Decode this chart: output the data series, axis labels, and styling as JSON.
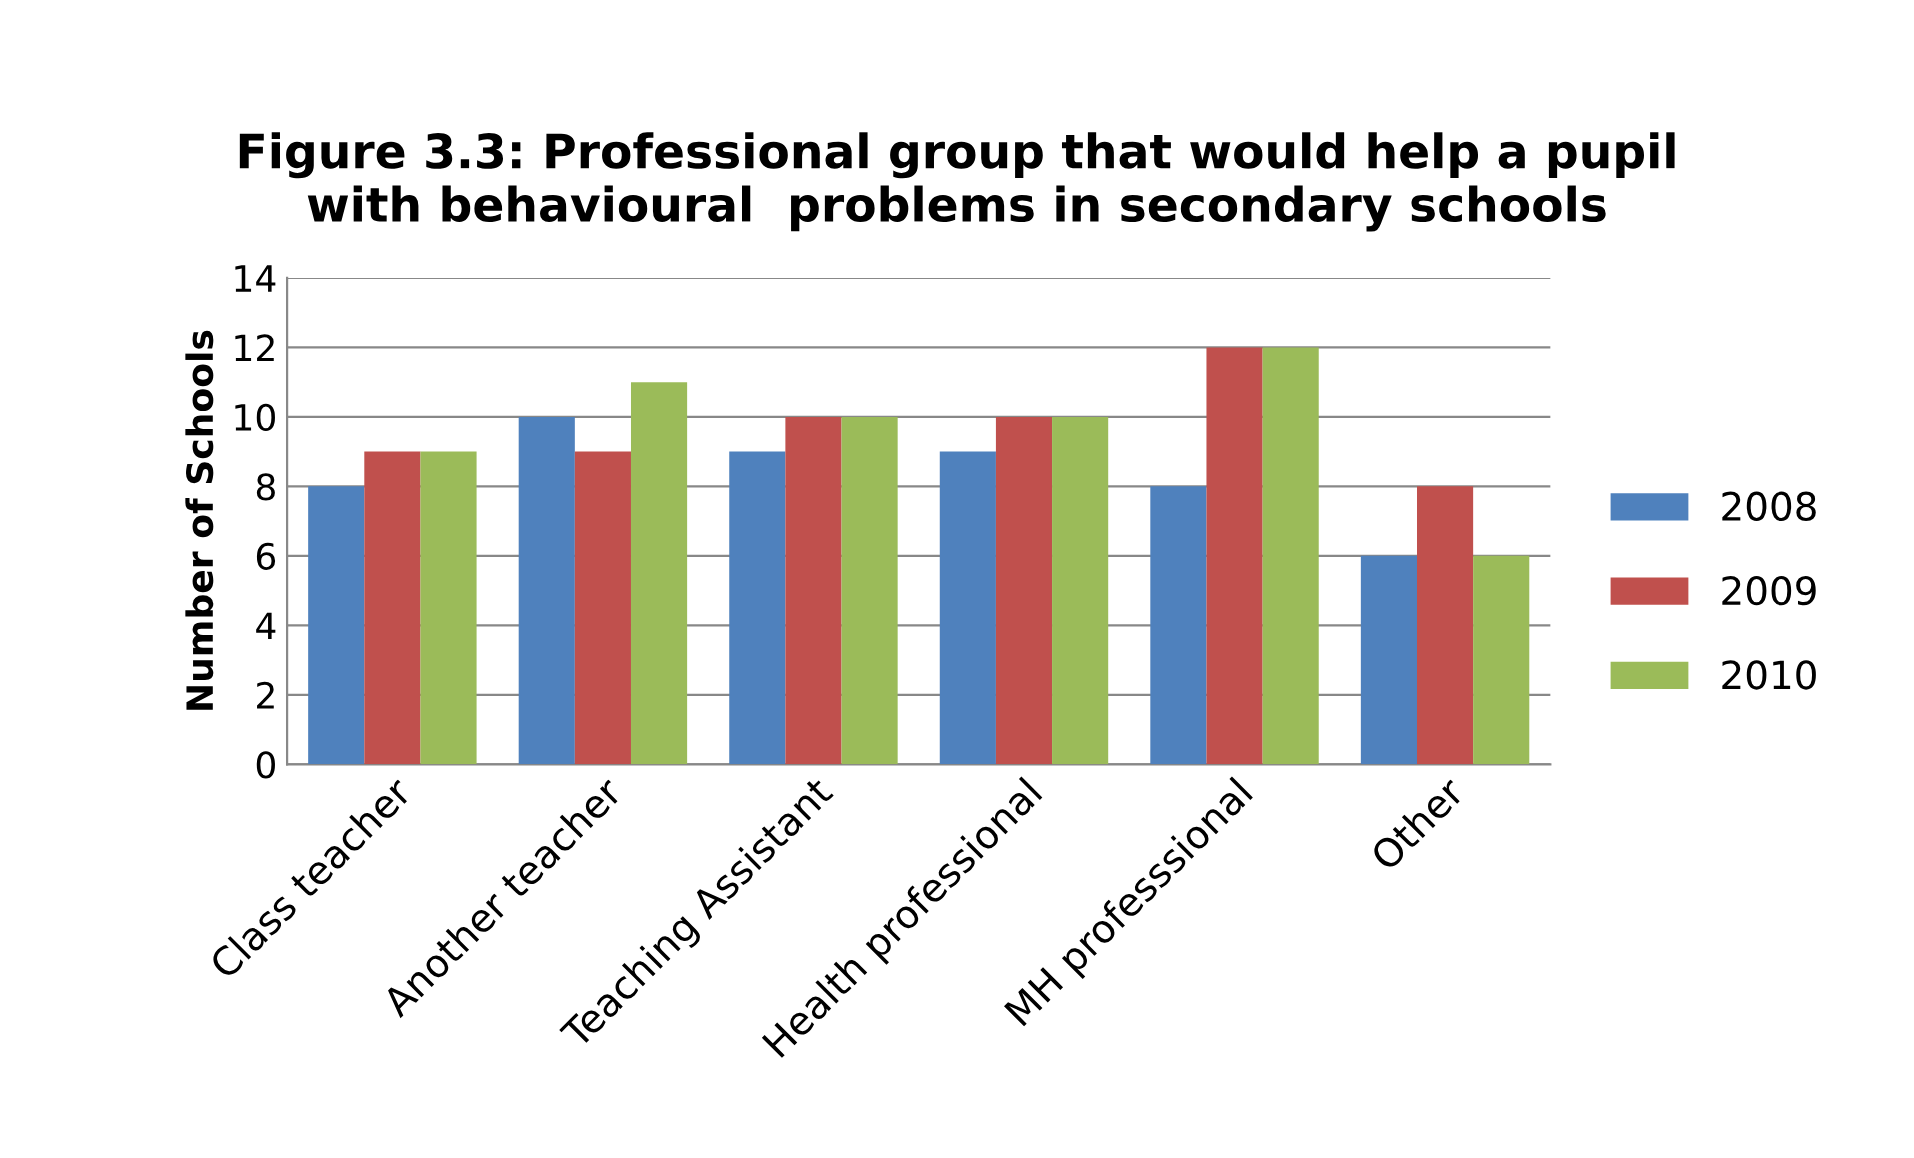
{
  "chart_data": {
    "type": "bar",
    "title": "Figure 3.3: Professional group that would help a pupil\nwith behavioural  problems in secondary schools",
    "ylabel": "Number of Schools",
    "categories": [
      "Class teacher",
      "Another teacher",
      "Teaching Assistant",
      "Health professional",
      "MH professsional",
      "Other"
    ],
    "series": [
      {
        "name": "2008",
        "color": "#4f81bd",
        "values": [
          8,
          10,
          9,
          9,
          8,
          6
        ]
      },
      {
        "name": "2009",
        "color": "#c0504d",
        "values": [
          9,
          9,
          10,
          10,
          12,
          8
        ]
      },
      {
        "name": "2010",
        "color": "#9bbb59",
        "values": [
          9,
          11,
          10,
          10,
          12,
          6
        ]
      }
    ],
    "ylim": [
      0,
      14
    ],
    "yticks": [
      0,
      2,
      4,
      6,
      8,
      10,
      12,
      14
    ],
    "grid": "y",
    "legend": "right"
  }
}
